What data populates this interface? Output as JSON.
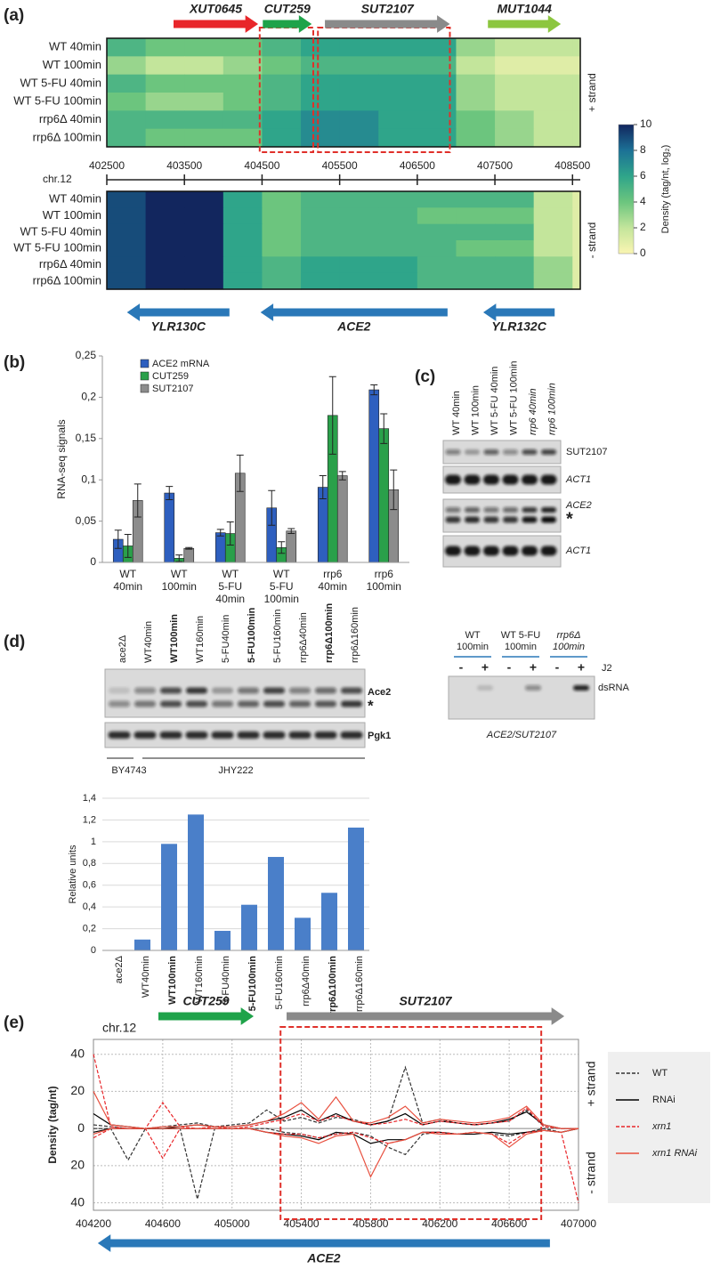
{
  "panel_labels": [
    "(a)",
    "(b)",
    "(c)",
    "(d)",
    "(e)"
  ],
  "chart_data": [
    {
      "type": "heatmap",
      "xlabel": "chr.12",
      "rows": [
        "WT 40min",
        "WT 100min",
        "WT 5-FU 40min",
        "WT 5-FU 100min",
        "rrp6Δ 40min",
        "rrp6Δ 100min"
      ],
      "bins": [
        402500,
        403000,
        403500,
        404000,
        404500,
        405000,
        405500,
        406000,
        406500,
        407000,
        407500,
        408000,
        408500,
        408600
      ],
      "xlim": [
        402500,
        408600
      ],
      "xticks": [
        402500,
        403500,
        404500,
        405500,
        406500,
        407500,
        408500
      ],
      "series": [
        {
          "name": "+ strand",
          "values": [
            [
              5,
              4,
              4,
              4,
              5,
              6,
              6,
              6,
              6,
              3,
              2,
              2,
              2
            ],
            [
              3,
              2,
              2,
              3,
              4,
              5,
              5,
              5,
              5,
              2,
              1,
              1,
              1
            ],
            [
              5,
              4,
              4,
              4,
              5,
              6,
              6,
              6,
              6,
              3,
              2,
              2,
              2
            ],
            [
              4,
              3,
              3,
              4,
              5,
              6,
              6,
              6,
              6,
              3,
              2,
              2,
              2
            ],
            [
              5,
              5,
              5,
              5,
              6,
              7,
              7,
              6,
              6,
              4,
              3,
              2,
              2
            ],
            [
              5,
              4,
              4,
              4,
              6,
              7,
              7,
              6,
              6,
              4,
              3,
              2,
              2
            ]
          ]
        },
        {
          "name": "- strand",
          "values": [
            [
              9,
              10,
              10,
              6,
              4,
              5,
              5,
              5,
              5,
              5,
              5,
              2,
              1
            ],
            [
              9,
              10,
              10,
              6,
              4,
              5,
              5,
              5,
              4,
              4,
              4,
              2,
              1
            ],
            [
              9,
              10,
              10,
              6,
              4,
              5,
              5,
              5,
              5,
              5,
              5,
              2,
              1
            ],
            [
              9,
              10,
              10,
              6,
              4,
              5,
              5,
              5,
              5,
              4,
              4,
              2,
              1
            ],
            [
              9,
              10,
              10,
              6,
              5,
              6,
              6,
              6,
              5,
              5,
              5,
              3,
              1
            ],
            [
              9,
              10,
              10,
              6,
              5,
              6,
              6,
              6,
              5,
              5,
              5,
              3,
              1
            ]
          ]
        }
      ],
      "colorbar": {
        "label": "Density (tag/nt, log₂)",
        "zlim": [
          0,
          10
        ],
        "ticks": [
          0,
          2,
          4,
          6,
          8,
          10
        ],
        "colors": [
          "#faf5b2",
          "#c3e59b",
          "#6cc57e",
          "#2fa58a",
          "#1c7196",
          "#12265e"
        ]
      },
      "genes": [
        {
          "name": "XUT0645",
          "start": 403360,
          "end": 404450,
          "direction": "right",
          "color": "#e8262a"
        },
        {
          "name": "CUT259",
          "start": 404510,
          "end": 405140,
          "direction": "right",
          "color": "#1fa34a"
        },
        {
          "name": "SUT2107",
          "start": 405310,
          "end": 406920,
          "direction": "right",
          "color": "#8a8a8a"
        },
        {
          "name": "MUT1044",
          "start": 407410,
          "end": 408350,
          "direction": "right",
          "color": "#8cc63f"
        },
        {
          "name": "YLR130C",
          "start": 402760,
          "end": 404080,
          "direction": "left",
          "color": "#2a78b8"
        },
        {
          "name": "ACE2",
          "start": 404480,
          "end": 406890,
          "direction": "left",
          "color": "#2a78b8"
        },
        {
          "name": "YLR132C",
          "start": 407350,
          "end": 408270,
          "direction": "left",
          "color": "#2a78b8"
        }
      ],
      "highlights": [
        [
          404470,
          405160
        ],
        [
          405220,
          406920
        ]
      ],
      "highlight_color": "#e0302a"
    },
    {
      "type": "bar",
      "ylabel": "RNA-seq signals",
      "categories": [
        "WT 40min",
        "WT 100min",
        "WT 5-FU 40min",
        "WT 5-FU 100min",
        "rrp6 40min",
        "rrp6 100min"
      ],
      "series": [
        {
          "name": "ACE2 mRNA",
          "color": "#2e5fbf",
          "values": [
            0.028,
            0.084,
            0.036,
            0.066,
            0.091,
            0.209
          ],
          "errors": [
            0.011,
            0.008,
            0.004,
            0.021,
            0.014,
            0.006
          ]
        },
        {
          "name": "CUT259",
          "color": "#2aa04a",
          "values": [
            0.02,
            0.005,
            0.035,
            0.018,
            0.178,
            0.162
          ],
          "errors": [
            0.014,
            0.004,
            0.014,
            0.007,
            0.047,
            0.018
          ]
        },
        {
          "name": "SUT2107",
          "color": "#8c8c8c",
          "values": [
            0.075,
            0.017,
            0.108,
            0.038,
            0.105,
            0.088
          ],
          "errors": [
            0.02,
            0.001,
            0.022,
            0.003,
            0.005,
            0.024
          ]
        }
      ],
      "ylim": [
        0,
        0.25
      ],
      "yticks": [
        0,
        {
          "value": 0.05,
          "label": "0,05"
        },
        {
          "value": 0.1,
          "label": "0,1"
        },
        {
          "value": 0.15,
          "label": "0,15"
        },
        {
          "value": 0.2,
          "label": "0,2"
        },
        {
          "value": 0.25,
          "label": "0,25"
        }
      ],
      "legend": "top-left"
    },
    {
      "type": "gel"
    },
    {
      "type": "bar",
      "ylabel": "Relative units",
      "categories": [
        "ace2Δ",
        "WT40min",
        "WT100min",
        "WT160min",
        "5-FU40min",
        "5-FU100min",
        "5-FU160min",
        "rrp6Δ40min",
        "rrp6Δ100min",
        "rrp6Δ160min"
      ],
      "bold": [
        false,
        false,
        true,
        false,
        false,
        true,
        false,
        false,
        true,
        false
      ],
      "values": [
        0,
        0.1,
        0.98,
        1.25,
        0.18,
        0.42,
        0.86,
        0.3,
        0.53,
        1.13
      ],
      "color": "#4a7fc9",
      "grid": true,
      "ylim": [
        0,
        1.4
      ],
      "yticks": [
        0,
        {
          "value": 0.2,
          "label": "0,2"
        },
        {
          "value": 0.4,
          "label": "0,4"
        },
        {
          "value": 0.6,
          "label": "0,6"
        },
        {
          "value": 0.8,
          "label": "0,8"
        },
        1,
        {
          "value": 1.2,
          "label": "1,2"
        },
        {
          "value": 1.4,
          "label": "1,4"
        }
      ]
    },
    {
      "type": "line",
      "ylabel": "Density (tag/nt)",
      "xlabel": "chr.12",
      "x": [
        404200,
        404300,
        404400,
        404500,
        404600,
        404700,
        404800,
        404900,
        405000,
        405100,
        405200,
        405300,
        405400,
        405500,
        405600,
        405700,
        405800,
        405900,
        406000,
        406100,
        406200,
        406300,
        406400,
        406500,
        406600,
        406700,
        406800,
        406900,
        407000
      ],
      "series": [
        {
          "name": "WT",
          "color": "#333333",
          "dashed": true,
          "values": [
            2,
            1,
            0,
            0,
            1,
            2,
            3,
            1,
            2,
            3,
            10,
            4,
            6,
            3,
            6,
            5,
            2,
            4,
            33,
            3,
            5,
            3,
            2,
            3,
            4,
            10,
            1,
            0,
            0
          ],
          "minus_values": [
            0,
            0,
            -17,
            0,
            0,
            0,
            -38,
            0,
            0,
            0,
            0,
            -2,
            -3,
            -5,
            -3,
            -2,
            -4,
            -10,
            -14,
            -3,
            -2,
            -3,
            -2,
            -3,
            -4,
            -2,
            0,
            -2,
            0
          ]
        },
        {
          "name": "RNAi",
          "color": "#000000",
          "dashed": false,
          "values": [
            8,
            2,
            1,
            0,
            0,
            1,
            2,
            1,
            1,
            2,
            4,
            6,
            10,
            4,
            8,
            4,
            2,
            4,
            8,
            2,
            4,
            3,
            2,
            3,
            5,
            9,
            2,
            0,
            0
          ],
          "minus_values": [
            -2,
            0,
            0,
            0,
            0,
            0,
            0,
            0,
            0,
            0,
            -2,
            -3,
            -4,
            -6,
            -2,
            -3,
            -8,
            -6,
            -6,
            -2,
            -2,
            -3,
            -3,
            -2,
            -3,
            -2,
            -1,
            -2,
            0
          ]
        },
        {
          "name": "xrn1",
          "color": "#e8262a",
          "dashed": true,
          "values": [
            40,
            1,
            0,
            0,
            14,
            1,
            0,
            1,
            0,
            1,
            3,
            5,
            8,
            4,
            7,
            4,
            2,
            3,
            5,
            2,
            4,
            3,
            2,
            3,
            4,
            11,
            1,
            0,
            0
          ],
          "minus_values": [
            -5,
            0,
            0,
            0,
            -16,
            0,
            0,
            0,
            0,
            0,
            -2,
            -3,
            -3,
            -5,
            -3,
            -2,
            -5,
            -8,
            -6,
            -2,
            -2,
            -3,
            -2,
            -3,
            -8,
            -2,
            -1,
            -2,
            -40
          ]
        },
        {
          "name": "xrn1 RNAi",
          "color": "#e8503f",
          "dashed": false,
          "values": [
            20,
            2,
            1,
            0,
            1,
            1,
            2,
            1,
            1,
            2,
            4,
            8,
            14,
            5,
            17,
            4,
            3,
            6,
            12,
            3,
            5,
            4,
            3,
            4,
            6,
            12,
            2,
            0,
            0
          ],
          "minus_values": [
            -3,
            0,
            0,
            0,
            0,
            0,
            0,
            0,
            0,
            0,
            -2,
            -4,
            -5,
            -8,
            -4,
            -3,
            -26,
            -8,
            -6,
            -2,
            -3,
            -3,
            -2,
            -3,
            -10,
            -3,
            -1,
            -2,
            0
          ]
        }
      ],
      "xlim": [
        404200,
        407000
      ],
      "xticks": [
        404200,
        404600,
        405000,
        405400,
        405800,
        406200,
        406600,
        407000
      ],
      "ylim": [
        -44,
        48
      ],
      "yticks": [
        40,
        20,
        0,
        {
          "value": -20,
          "label": "20"
        },
        {
          "value": -40,
          "label": "40"
        }
      ],
      "grid": true,
      "strands": [
        "+ strand",
        "- strand"
      ],
      "genes": [
        {
          "name": "CUT259",
          "start": 404575,
          "end": 405125,
          "direction": "right",
          "color": "#1fa34a"
        },
        {
          "name": "SUT2107",
          "start": 405315,
          "end": 406918,
          "direction": "right",
          "color": "#8a8a8a"
        },
        {
          "name": "ACE2",
          "start": 404225,
          "end": 406835,
          "direction": "left",
          "color": "#2a78b8"
        }
      ],
      "highlights": [
        [
          405280,
          406785
        ]
      ],
      "highlight_color": "#e0302a",
      "legend": "right"
    }
  ],
  "gels": {
    "c": {
      "lanes": [
        "WT 40min",
        "WT 100min",
        "WT 5-FU 40min",
        "WT 5-FU 100min",
        "rrp6 40min",
        "rrp6 100min"
      ],
      "bands": [
        "SUT2107",
        "ACT1",
        "ACE2",
        "*",
        "ACT1"
      ]
    },
    "d": {
      "lanes": [
        "ace2Δ",
        "WT40min",
        "WT100min",
        "WT160min",
        "5-FU40min",
        "5-FU100min",
        "5-FU160min",
        "rrp6Δ40min",
        "rrp6Δ100min",
        "rrp6Δ160min"
      ],
      "bold": [
        false,
        false,
        true,
        false,
        false,
        true,
        false,
        false,
        true,
        false
      ],
      "bands": [
        "Ace2",
        "*",
        "Pgk1"
      ],
      "strains": [
        "BY4743",
        "JHY222"
      ]
    },
    "dsrna": {
      "groups": [
        "WT 100min",
        "WT 5-FU 100min",
        "rrp6Δ 100min"
      ],
      "signs": [
        "-",
        "+",
        "-",
        "+",
        "-",
        "+"
      ],
      "antibody": "J2",
      "band": "dsRNA",
      "caption": "ACE2/SUT2107"
    }
  }
}
